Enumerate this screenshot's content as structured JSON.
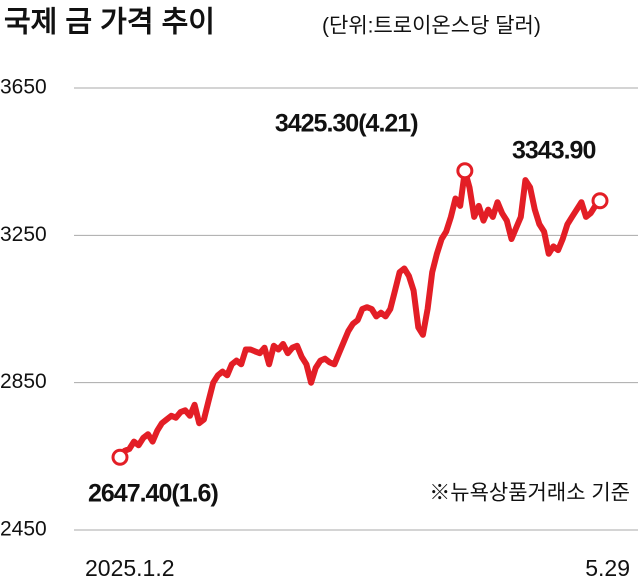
{
  "chart_data": {
    "type": "line",
    "title": "국제 금 가격 추이",
    "subtitle": "(단위:트로이온스당 달러)",
    "categories": [
      "2025.1.2",
      null,
      null,
      null,
      null,
      null,
      null,
      null,
      null,
      null,
      null,
      null,
      null,
      null,
      null,
      null,
      null,
      null,
      null,
      null,
      null,
      null,
      null,
      null,
      null,
      null,
      null,
      null,
      null,
      null,
      null,
      null,
      null,
      null,
      null,
      null,
      null,
      null,
      null,
      null,
      null,
      null,
      null,
      null,
      null,
      null,
      null,
      null,
      null,
      null,
      null,
      null,
      null,
      null,
      null,
      null,
      null,
      null,
      null,
      null,
      null,
      null,
      null,
      null,
      null,
      null,
      null,
      null,
      null,
      null,
      null,
      null,
      null,
      null,
      null,
      null,
      null,
      null,
      null,
      null,
      null,
      null,
      null,
      null,
      null,
      null,
      null,
      null,
      null,
      null,
      null,
      null,
      null,
      null,
      null,
      null,
      null,
      null,
      null,
      null,
      null,
      null,
      null,
      "5.29"
    ],
    "series": [
      {
        "color": "#e31e26",
        "values": [
          2647.4,
          2665,
          2670,
          2690,
          2680,
          2700,
          2710,
          2690,
          2720,
          2740,
          2750,
          2760,
          2755,
          2770,
          2775,
          2760,
          2790,
          2740,
          2750,
          2800,
          2850,
          2870,
          2880,
          2870,
          2900,
          2910,
          2900,
          2940,
          2940,
          2935,
          2930,
          2945,
          2900,
          2950,
          2940,
          2955,
          2930,
          2945,
          2950,
          2920,
          2900,
          2850,
          2890,
          2910,
          2915,
          2905,
          2900,
          2930,
          2960,
          2990,
          3010,
          3020,
          3050,
          3055,
          3050,
          3030,
          3040,
          3030,
          3050,
          3100,
          3150,
          3160,
          3140,
          3100,
          3000,
          2980,
          3050,
          3150,
          3200,
          3240,
          3260,
          3300,
          3350,
          3330,
          3425.3,
          3380,
          3300,
          3330,
          3290,
          3320,
          3300,
          3340,
          3310,
          3290,
          3240,
          3270,
          3300,
          3400,
          3380,
          3320,
          3280,
          3260,
          3200,
          3220,
          3210,
          3240,
          3280,
          3300,
          3320,
          3340,
          3300,
          3310,
          3330,
          3343.9
        ]
      }
    ],
    "ylim": [
      2450,
      3650
    ],
    "yticks": [
      2450,
      2850,
      3250,
      3650
    ],
    "grid": true,
    "annotations": [
      "2647.40(1.6)",
      "3425.30(4.21)",
      "3343.90"
    ],
    "note": "※뉴욕상품거래소 기준"
  }
}
